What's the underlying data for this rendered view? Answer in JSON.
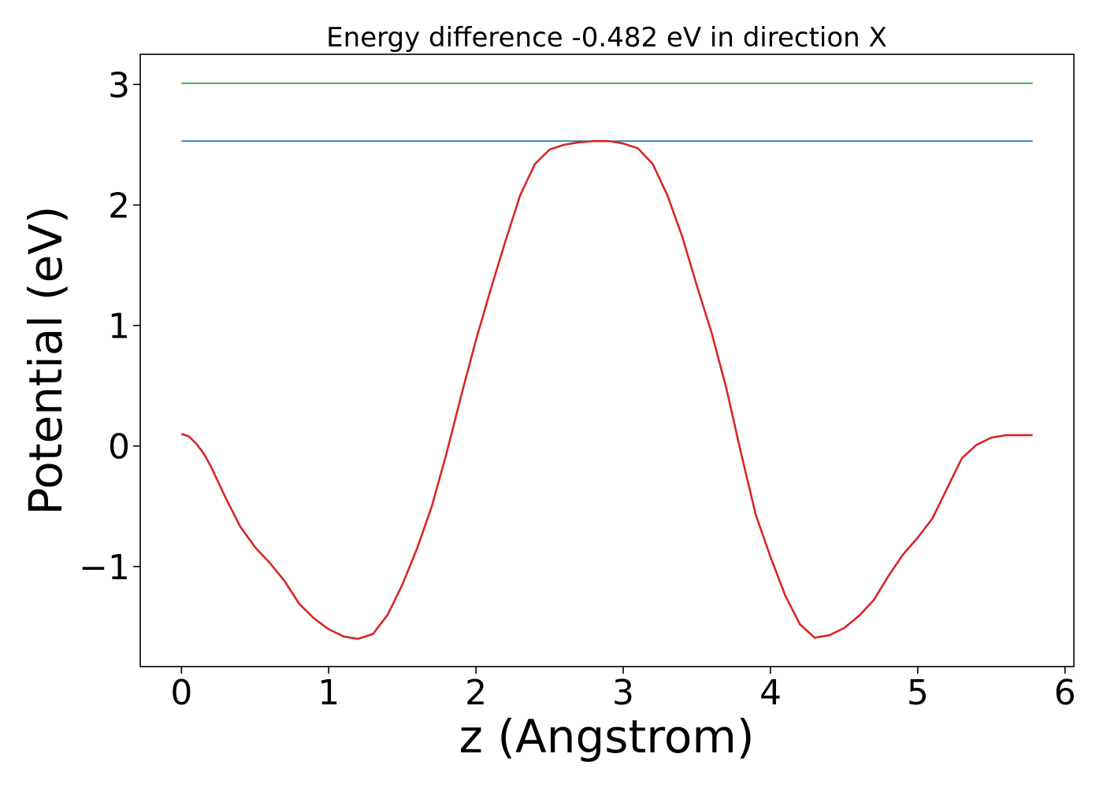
{
  "chart_data": {
    "type": "line",
    "title": "Energy difference -0.482 eV in direction X",
    "xlabel": "z (Angstrom)",
    "ylabel": "Potential (eV)",
    "xlim": [
      -0.28,
      6.06
    ],
    "ylim": [
      -1.83,
      3.25
    ],
    "xticks": [
      0,
      1,
      2,
      3,
      4,
      5,
      6
    ],
    "xtick_labels": [
      "0",
      "1",
      "2",
      "3",
      "4",
      "5",
      "6"
    ],
    "yticks": [
      -1,
      0,
      1,
      2,
      3
    ],
    "ytick_labels": [
      "−1",
      "0",
      "1",
      "2",
      "3"
    ],
    "grid": false,
    "series": [
      {
        "color": "#2ca02c",
        "x": [
          0,
          5.78
        ],
        "y": [
          3.01,
          3.01
        ]
      },
      {
        "color": "#1f77b4",
        "x": [
          0,
          5.78
        ],
        "y": [
          2.53,
          2.53
        ]
      },
      {
        "color": "#d62728",
        "x": [
          0,
          0.05,
          0.1,
          0.15,
          0.2,
          0.3,
          0.4,
          0.5,
          0.6,
          0.7,
          0.8,
          0.9,
          1.0,
          1.1,
          1.2,
          1.3,
          1.4,
          1.5,
          1.6,
          1.7,
          1.8,
          1.9,
          2.0,
          2.1,
          2.2,
          2.3,
          2.4,
          2.5,
          2.6,
          2.7,
          2.8,
          2.9,
          3.0,
          3.1,
          3.2,
          3.3,
          3.4,
          3.5,
          3.6,
          3.7,
          3.8,
          3.9,
          4.0,
          4.1,
          4.2,
          4.3,
          4.4,
          4.5,
          4.6,
          4.7,
          4.8,
          4.9,
          5.0,
          5.1,
          5.2,
          5.3,
          5.4,
          5.5,
          5.6,
          5.65,
          5.7,
          5.75,
          5.78
        ],
        "y": [
          0.1,
          0.08,
          0.02,
          -0.06,
          -0.17,
          -0.43,
          -0.67,
          -0.84,
          -0.97,
          -1.12,
          -1.31,
          -1.43,
          -1.52,
          -1.58,
          -1.6,
          -1.56,
          -1.4,
          -1.15,
          -0.85,
          -0.5,
          -0.06,
          0.42,
          0.88,
          1.3,
          1.7,
          2.08,
          2.34,
          2.46,
          2.5,
          2.52,
          2.53,
          2.53,
          2.51,
          2.47,
          2.34,
          2.08,
          1.74,
          1.33,
          0.94,
          0.48,
          -0.06,
          -0.57,
          -0.92,
          -1.24,
          -1.48,
          -1.59,
          -1.57,
          -1.51,
          -1.41,
          -1.28,
          -1.08,
          -0.9,
          -0.76,
          -0.6,
          -0.35,
          -0.1,
          0.01,
          0.07,
          0.09,
          0.09,
          0.09,
          0.09,
          0.09
        ]
      }
    ]
  }
}
